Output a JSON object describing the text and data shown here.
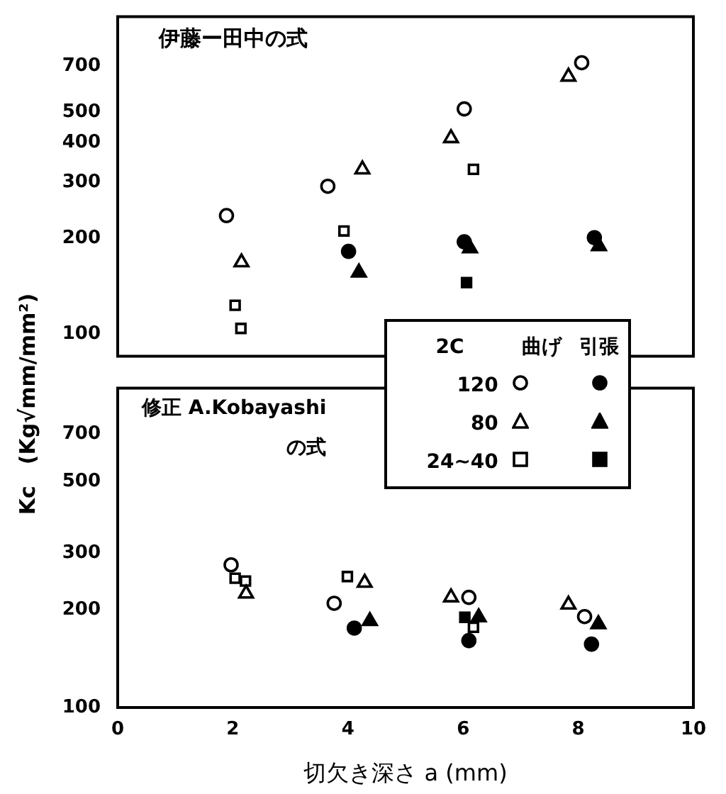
{
  "chart_data": [
    {
      "type": "scatter",
      "ylabel": "Kc　(Kg√mm/mm²)",
      "legend_title": "2C",
      "legend": "bottom right",
      "log": "y",
      "xlim": [
        0,
        10
      ],
      "ylim": [
        85,
        1000
      ],
      "yticks": [
        100,
        200,
        300,
        400,
        500,
        700
      ],
      "tick_labels": "y",
      "grid": false,
      "annotations": [
        "伊藤ー田中の式",
        "曲げ",
        "引張"
      ],
      "series": [
        {
          "name": "120",
          "color": "#ffffff",
          "marker": "circle",
          "x": [
            1.89,
            3.65,
            6.02,
            8.06
          ],
          "values": [
            236,
            292,
            512,
            716
          ]
        },
        {
          "name": "80",
          "color": "#ffffff",
          "marker": "triangle",
          "x": [
            2.15,
            4.25,
            5.79,
            7.83
          ],
          "values": [
            168,
            330,
            414,
            647
          ]
        },
        {
          "name": "24~40",
          "color": "#ffffff",
          "marker": "square",
          "x": [
            2.04,
            2.14,
            3.93,
            6.18
          ],
          "values": [
            123,
            104,
            211,
            330
          ]
        },
        {
          "color": "#000000",
          "marker": "circle",
          "x": [
            4.01,
            6.02,
            8.28
          ],
          "values": [
            182,
            195,
            201
          ]
        },
        {
          "color": "#000000",
          "marker": "triangle",
          "x": [
            4.19,
            6.12,
            8.36
          ],
          "values": [
            156,
            186,
            189
          ]
        },
        {
          "color": "#000000",
          "marker": "square",
          "x": [
            6.06
          ],
          "values": [
            145
          ]
        }
      ]
    },
    {
      "type": "scatter",
      "xlabel": "切欠き深さ a (mm)",
      "log": "y",
      "xlim": [
        0,
        10
      ],
      "xticks": [
        0,
        2,
        4,
        6,
        8,
        10
      ],
      "ylim": [
        100,
        970
      ],
      "yticks": [
        100,
        200,
        300,
        500,
        700
      ],
      "grid": false,
      "annotations": [
        "修正 A.Kobayashi\nの式"
      ],
      "series": [
        {
          "color": "#ffffff",
          "marker": "circle",
          "x": [
            1.97,
            3.76,
            6.1,
            8.11
          ],
          "values": [
            276,
            210,
            219,
            191
          ]
        },
        {
          "color": "#ffffff",
          "marker": "triangle",
          "x": [
            2.23,
            4.29,
            5.79,
            7.83
          ],
          "values": [
            225,
            243,
            219,
            208
          ]
        },
        {
          "color": "#ffffff",
          "marker": "square",
          "x": [
            2.04,
            2.22,
            3.99,
            6.18
          ],
          "values": [
            251,
            246,
            254,
            177
          ]
        },
        {
          "color": "#000000",
          "marker": "circle",
          "x": [
            4.11,
            6.1,
            8.23
          ],
          "values": [
            176,
            161,
            157
          ]
        },
        {
          "color": "#000000",
          "marker": "triangle",
          "x": [
            4.38,
            6.27,
            8.35
          ],
          "values": [
            185,
            190,
            181
          ]
        },
        {
          "color": "#000000",
          "marker": "square",
          "x": [
            6.03
          ],
          "values": [
            190
          ]
        }
      ]
    }
  ]
}
